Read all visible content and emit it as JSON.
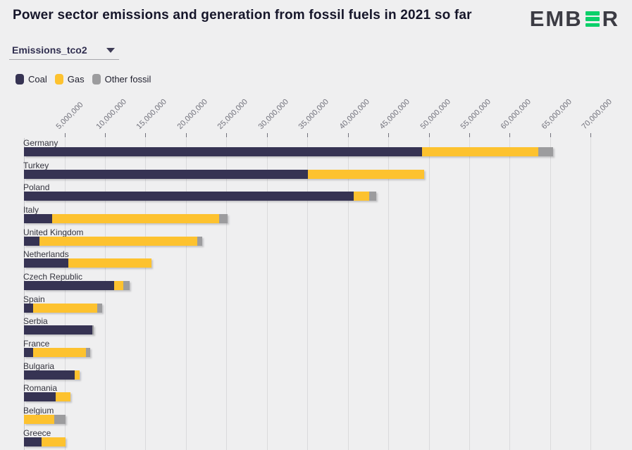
{
  "header": {
    "title": "Power sector emissions and generation from fossil fuels in 2021 so far",
    "logo": {
      "left": "EMB",
      "right": "R"
    }
  },
  "controls": {
    "metric_dropdown": {
      "value": "Emissions_tco2"
    }
  },
  "legend": [
    {
      "label": "Coal",
      "color": "#363353"
    },
    {
      "label": "Gas",
      "color": "#fdc22f"
    },
    {
      "label": "Other fossil",
      "color": "#9c9c9e"
    }
  ],
  "colors": {
    "background": "#efeff0",
    "coal": "#363353",
    "gas": "#fdc22f",
    "other_fossil": "#9c9c9e",
    "logo_green": "#0bd069",
    "grid": "#dadadc"
  },
  "chart_data": {
    "type": "bar",
    "orientation": "horizontal",
    "stacked": true,
    "title": "Power sector emissions and generation from fossil fuels in 2021 so far",
    "unit": "tCO2",
    "grid": true,
    "xlim": [
      0,
      73000000
    ],
    "x_tick_values": [
      5000000,
      10000000,
      15000000,
      20000000,
      25000000,
      30000000,
      35000000,
      40000000,
      45000000,
      50000000,
      55000000,
      60000000,
      65000000,
      70000000
    ],
    "x_tick_labels": [
      "5,000,000",
      "10,000,000",
      "15,000,000",
      "20,000,000",
      "25,000,000",
      "30,000,000",
      "35,000,000",
      "40,000,000",
      "45,000,000",
      "50,000,000",
      "55,000,000",
      "60,000,000",
      "65,000,000",
      "70,000,000"
    ],
    "categories": [
      "Germany",
      "Turkey",
      "Poland",
      "Italy",
      "United Kingdom",
      "Netherlands",
      "Czech Republic",
      "Spain",
      "Serbia",
      "France",
      "Bulgaria",
      "Romania",
      "Belgium",
      "Greece"
    ],
    "series": [
      {
        "name": "Coal",
        "color": "#363353",
        "values": [
          49200000,
          35100000,
          40700000,
          3450000,
          1900000,
          5500000,
          11150000,
          1150000,
          8450000,
          1150000,
          6250000,
          3950000,
          0,
          2200000
        ]
      },
      {
        "name": "Gas",
        "color": "#fdc22f",
        "values": [
          14300000,
          14300000,
          1950000,
          20650000,
          19550000,
          10300000,
          1150000,
          7950000,
          0,
          6500000,
          650000,
          1800000,
          3700000,
          2900000
        ]
      },
      {
        "name": "Other fossil",
        "color": "#9c9c9e",
        "values": [
          1900000,
          0,
          850000,
          1050000,
          550000,
          0,
          800000,
          600000,
          200000,
          500000,
          0,
          0,
          1450000,
          0
        ]
      }
    ]
  }
}
